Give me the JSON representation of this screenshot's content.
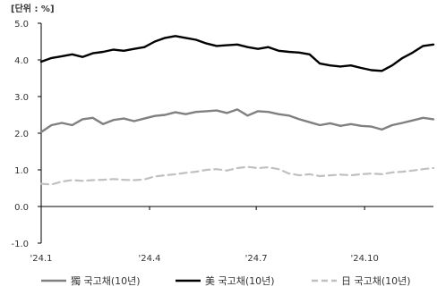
{
  "chart_data": {
    "type": "line",
    "unit_label": "[단위 : %]",
    "ylim": [
      -1.0,
      5.0
    ],
    "yticks": [
      "5.0",
      "4.0",
      "3.0",
      "2.0",
      "1.0",
      "0.0",
      "-1.0"
    ],
    "ytick_values": [
      5,
      4,
      3,
      2,
      1,
      0,
      -1
    ],
    "x_ticks": [
      "'24.1",
      "'24.4",
      "'24.7",
      "'24.10"
    ],
    "x_tick_positions": [
      0,
      63,
      125,
      188
    ],
    "x_range": [
      0,
      228
    ],
    "grid": false,
    "legend_position": "bottom",
    "series": [
      {
        "name": "獨 국고채(10년)",
        "color": "#808080",
        "style": "solid",
        "points": [
          [
            0,
            2.03
          ],
          [
            6,
            2.22
          ],
          [
            12,
            2.28
          ],
          [
            18,
            2.22
          ],
          [
            24,
            2.38
          ],
          [
            30,
            2.42
          ],
          [
            36,
            2.25
          ],
          [
            42,
            2.36
          ],
          [
            48,
            2.4
          ],
          [
            54,
            2.33
          ],
          [
            60,
            2.4
          ],
          [
            66,
            2.47
          ],
          [
            72,
            2.5
          ],
          [
            78,
            2.57
          ],
          [
            84,
            2.52
          ],
          [
            90,
            2.58
          ],
          [
            96,
            2.6
          ],
          [
            102,
            2.62
          ],
          [
            108,
            2.55
          ],
          [
            114,
            2.65
          ],
          [
            120,
            2.48
          ],
          [
            126,
            2.6
          ],
          [
            132,
            2.58
          ],
          [
            138,
            2.52
          ],
          [
            144,
            2.48
          ],
          [
            150,
            2.38
          ],
          [
            156,
            2.3
          ],
          [
            162,
            2.22
          ],
          [
            168,
            2.27
          ],
          [
            174,
            2.2
          ],
          [
            180,
            2.25
          ],
          [
            186,
            2.2
          ],
          [
            192,
            2.18
          ],
          [
            198,
            2.1
          ],
          [
            204,
            2.22
          ],
          [
            210,
            2.28
          ],
          [
            216,
            2.35
          ],
          [
            222,
            2.42
          ],
          [
            228,
            2.38
          ]
        ]
      },
      {
        "name": "美 국고채(10년)",
        "color": "#000000",
        "style": "solid",
        "points": [
          [
            0,
            3.95
          ],
          [
            6,
            4.05
          ],
          [
            12,
            4.1
          ],
          [
            18,
            4.15
          ],
          [
            24,
            4.08
          ],
          [
            30,
            4.18
          ],
          [
            36,
            4.22
          ],
          [
            42,
            4.28
          ],
          [
            48,
            4.25
          ],
          [
            54,
            4.3
          ],
          [
            60,
            4.35
          ],
          [
            66,
            4.5
          ],
          [
            72,
            4.6
          ],
          [
            78,
            4.65
          ],
          [
            84,
            4.6
          ],
          [
            90,
            4.55
          ],
          [
            96,
            4.45
          ],
          [
            102,
            4.38
          ],
          [
            108,
            4.4
          ],
          [
            114,
            4.42
          ],
          [
            120,
            4.35
          ],
          [
            126,
            4.3
          ],
          [
            132,
            4.35
          ],
          [
            138,
            4.25
          ],
          [
            144,
            4.22
          ],
          [
            150,
            4.2
          ],
          [
            156,
            4.15
          ],
          [
            162,
            3.9
          ],
          [
            168,
            3.85
          ],
          [
            174,
            3.82
          ],
          [
            180,
            3.85
          ],
          [
            186,
            3.78
          ],
          [
            192,
            3.72
          ],
          [
            198,
            3.7
          ],
          [
            204,
            3.85
          ],
          [
            210,
            4.05
          ],
          [
            216,
            4.2
          ],
          [
            222,
            4.38
          ],
          [
            228,
            4.42
          ]
        ]
      },
      {
        "name": "日 국고채(10년)",
        "color": "#c0c0c0",
        "style": "dashed",
        "points": [
          [
            0,
            0.62
          ],
          [
            6,
            0.6
          ],
          [
            12,
            0.68
          ],
          [
            18,
            0.72
          ],
          [
            24,
            0.7
          ],
          [
            30,
            0.72
          ],
          [
            36,
            0.73
          ],
          [
            42,
            0.75
          ],
          [
            48,
            0.73
          ],
          [
            54,
            0.72
          ],
          [
            60,
            0.74
          ],
          [
            66,
            0.82
          ],
          [
            72,
            0.85
          ],
          [
            78,
            0.88
          ],
          [
            84,
            0.92
          ],
          [
            90,
            0.95
          ],
          [
            96,
            1.0
          ],
          [
            102,
            1.02
          ],
          [
            108,
            0.98
          ],
          [
            114,
            1.05
          ],
          [
            120,
            1.08
          ],
          [
            126,
            1.05
          ],
          [
            132,
            1.07
          ],
          [
            138,
            1.02
          ],
          [
            144,
            0.9
          ],
          [
            150,
            0.85
          ],
          [
            156,
            0.88
          ],
          [
            162,
            0.83
          ],
          [
            168,
            0.85
          ],
          [
            174,
            0.87
          ],
          [
            180,
            0.85
          ],
          [
            186,
            0.88
          ],
          [
            192,
            0.9
          ],
          [
            198,
            0.88
          ],
          [
            204,
            0.93
          ],
          [
            210,
            0.95
          ],
          [
            216,
            0.98
          ],
          [
            222,
            1.02
          ],
          [
            228,
            1.05
          ]
        ]
      }
    ]
  }
}
